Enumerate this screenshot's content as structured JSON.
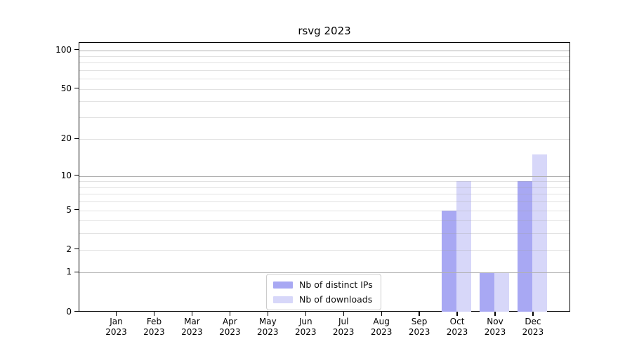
{
  "title": "rsvg 2023",
  "chart_data": {
    "type": "bar",
    "title": "rsvg 2023",
    "categories": [
      "Jan 2023",
      "Feb 2023",
      "Mar 2023",
      "Apr 2023",
      "May 2023",
      "Jun 2023",
      "Jul 2023",
      "Aug 2023",
      "Sep 2023",
      "Oct 2023",
      "Nov 2023",
      "Dec 2023"
    ],
    "series": [
      {
        "name": "Nb of distinct IPs",
        "color": "#a8a8f3",
        "values": [
          0,
          0,
          0,
          0,
          0,
          0,
          0,
          0,
          0,
          5,
          1,
          9
        ]
      },
      {
        "name": "Nb of downloads",
        "color": "#d7d7f9",
        "values": [
          0,
          0,
          0,
          0,
          0,
          0,
          0,
          0,
          0,
          9,
          1,
          15
        ]
      }
    ],
    "xlabel": "",
    "ylabel": "",
    "yscale": "log10(1+value)",
    "ylim": [
      0,
      115
    ],
    "ytick_labels": [
      0,
      1,
      2,
      5,
      10,
      20,
      50,
      100
    ],
    "major_gridlines": [
      1,
      10,
      100
    ],
    "minor_gridlines": [
      2,
      3,
      4,
      5,
      6,
      7,
      8,
      9,
      20,
      30,
      40,
      50,
      60,
      70,
      80,
      90
    ],
    "grid": true,
    "legend_position": "lower center"
  },
  "legend": {
    "items": [
      {
        "label": "Nb of distinct IPs",
        "color": "#a8a8f3"
      },
      {
        "label": "Nb of downloads",
        "color": "#d7d7f9"
      }
    ]
  },
  "colors": {
    "series_distinct_ips": "#a8a8f3",
    "series_downloads": "#d7d7f9",
    "grid_major": "#b0b0b0",
    "grid_minor": "rgba(160,160,160,0.3)",
    "axis": "#000000",
    "background": "#ffffff"
  }
}
